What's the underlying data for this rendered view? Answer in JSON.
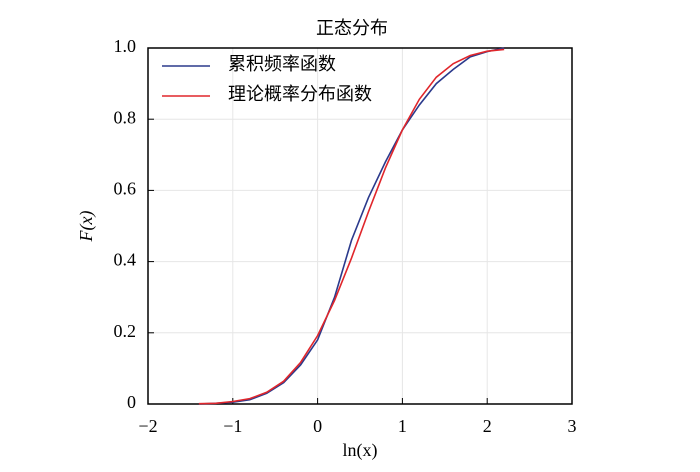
{
  "chart_data": {
    "type": "line",
    "title": "正态分布",
    "x_label": "ln(x)",
    "y_label": "F(x)",
    "xlim": [
      -2,
      3
    ],
    "ylim": [
      0,
      1
    ],
    "xticks": [
      {
        "value": -2,
        "label": "−2"
      },
      {
        "value": -1,
        "label": "−1"
      },
      0,
      1,
      2,
      3
    ],
    "yticks": [
      0,
      0.2,
      0.4,
      0.6,
      0.8,
      {
        "value": 1,
        "label": "1.0"
      }
    ],
    "grid": true,
    "legend": "upper left",
    "x": [
      -1.4,
      -1.2,
      -1.0,
      -0.8,
      -0.6,
      -0.4,
      -0.2,
      0,
      0.2,
      0.4,
      0.6,
      0.8,
      1.0,
      1.2,
      1.4,
      1.6,
      1.8,
      2.0,
      2.2
    ],
    "series": [
      {
        "name": "累积频率函数",
        "color": "#2b3a8c",
        "values": [
          0.0,
          0.002,
          0.005,
          0.012,
          0.03,
          0.06,
          0.11,
          0.18,
          0.3,
          0.46,
          0.58,
          0.68,
          0.77,
          0.84,
          0.9,
          0.94,
          0.975,
          0.99,
          1.0
        ]
      },
      {
        "name": "理论概率分布函数",
        "color": "#e0262b",
        "values": [
          0.001,
          0.002,
          0.007,
          0.015,
          0.033,
          0.064,
          0.117,
          0.192,
          0.291,
          0.41,
          0.54,
          0.663,
          0.77,
          0.856,
          0.918,
          0.956,
          0.979,
          0.991,
          0.996
        ]
      }
    ]
  }
}
